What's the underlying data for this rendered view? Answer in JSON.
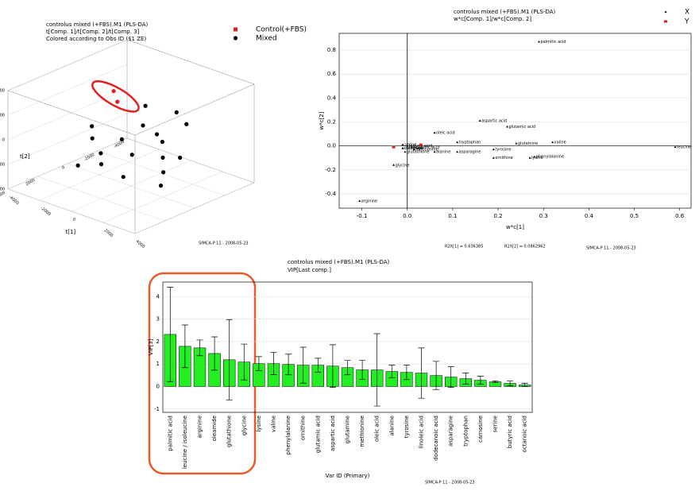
{
  "chart_data": [
    {
      "type": "scatter3d",
      "title": "controlus mixed (+FBS).M1 (PLS-DA)",
      "subtitle": "t[Comp. 1]/t[Comp. 2]/t[Comp. 3]",
      "note": "Colored according to Obs ID ($1 ZE)",
      "xlabel": "t[1]",
      "ylabel": "t[2]",
      "zlabel": "t[3]",
      "xlim": [
        -4000,
        4000
      ],
      "ylim": [
        -4000,
        4000
      ],
      "zlim": [
        -4000,
        4000
      ],
      "xticks": [
        -4000,
        -2000,
        0,
        2000,
        4000
      ],
      "yticks": [
        -4000,
        -2000,
        0,
        2000,
        4000
      ],
      "zticks": [
        -4000,
        -2000,
        0,
        2000,
        4000
      ],
      "series": [
        {
          "name": "Control(+FBS)",
          "color": "#e02020",
          "x": [
            -2500,
            -1800
          ],
          "y": [
            -1500,
            -1000
          ],
          "z": [
            1800,
            1500
          ]
        },
        {
          "name": "Mixed",
          "color": "#000000",
          "x": [
            -500,
            0,
            500,
            1500,
            2000,
            2500,
            1000,
            -500,
            0,
            -1500,
            -2000,
            1800,
            2800,
            3000,
            -1000,
            800,
            -300,
            1200
          ],
          "y": [
            -1500,
            -800,
            -1200,
            -500,
            0,
            500,
            1000,
            1500,
            2000,
            1000,
            500,
            -1800,
            -300,
            1200,
            2500,
            -2200,
            300,
            1800
          ],
          "z": [
            1500,
            500,
            -200,
            0,
            -800,
            -1500,
            -500,
            -800,
            -1200,
            -300,
            200,
            900,
            -600,
            -2000,
            -1500,
            1200,
            -200,
            -1800
          ]
        }
      ],
      "footer": "SIMCA-P 11 - 2008-05-23"
    },
    {
      "type": "scatter",
      "title": "controlus mixed (+FBS).M1 (PLS-DA)",
      "subtitle": "w*c[Comp. 1]/w*c[Comp. 2]",
      "xlabel": "w*c[1]",
      "ylabel": "w*c[2]",
      "xlim": [
        -0.15,
        0.625
      ],
      "ylim": [
        -0.52,
        0.94
      ],
      "xticks": [
        -0.1,
        {
          "value": 0,
          "label": "0.0"
        },
        0.1,
        0.2,
        0.3,
        0.4,
        0.5,
        0.6
      ],
      "yticks": [
        -0.4,
        -0.2,
        {
          "value": 0,
          "label": "0.0"
        },
        0.2,
        0.4,
        0.6,
        0.8
      ],
      "grid": true,
      "series": [
        {
          "name": "X",
          "color": "#000000",
          "x": [
            0.29,
            0.16,
            0.22,
            0.06,
            0.11,
            0.24,
            0.32,
            0.59,
            0.19,
            0.19,
            0.28,
            0.27,
            0.06,
            0.11,
            -0.03,
            -0.105,
            -0.01,
            -0.01,
            -0.005,
            0.0,
            0.01,
            0.015,
            -0.01
          ],
          "y": [
            0.87,
            0.21,
            0.16,
            0.11,
            0.03,
            0.02,
            0.03,
            -0.01,
            -0.03,
            -0.1,
            -0.09,
            -0.1,
            -0.05,
            -0.05,
            -0.16,
            -0.46,
            0.01,
            -0.02,
            -0.05,
            0.0,
            -0.01,
            -0.03,
            -0.02
          ],
          "labels": [
            "palmitic acid",
            "aspartic acid",
            "glutamic acid",
            "oleic acid",
            "tryptophan",
            "glutamine",
            "valine",
            "leucine",
            "tyrosine",
            "ornithine",
            "phenylalanine",
            "lysine",
            "alanine",
            "asparagine",
            "glycine",
            "arginine",
            "serine",
            "carnosine",
            "glutathione",
            "butyric acid",
            "octanoic acid",
            "methionine",
            "oleamide"
          ]
        },
        {
          "name": "Y",
          "color": "#e02020",
          "x": [
            0.03,
            -0.03
          ],
          "y": [
            0.01,
            -0.01
          ]
        }
      ],
      "r2x": [
        "R2X[1] = 0.636385",
        "R2X[2] = 0.0862962"
      ],
      "footer": "SIMCA-P 11 - 2008-05-23"
    },
    {
      "type": "bar",
      "title": "controlus mixed (+FBS).M1 (PLS-DA)",
      "subtitle": "VIP[Last comp.]",
      "xlabel": "Var ID (Primary)",
      "ylabel": "VIP[3]",
      "color": "#22ee22",
      "categories": [
        "palmitic acid",
        "leucine / isoleucine",
        "arginine",
        "oleamide",
        "glutathione",
        "glycine",
        "lysine",
        "valine",
        "phenylalanine",
        "ornithine",
        "glutamic acid",
        "aspartic acid",
        "glutamine",
        "methionine",
        "oleic acid",
        "alanine",
        "tyrosine",
        "linoleic acid",
        "dodecanoic acid",
        "asparagine",
        "tryptophan",
        "carnosine",
        "serine",
        "butyric acid",
        "octanoic acid"
      ],
      "values": [
        2.32,
        1.79,
        1.72,
        1.47,
        1.19,
        1.09,
        1.02,
        1.02,
        0.98,
        0.95,
        0.95,
        0.91,
        0.84,
        0.74,
        0.74,
        0.67,
        0.63,
        0.6,
        0.49,
        0.42,
        0.35,
        0.28,
        0.21,
        0.14,
        0.07
      ],
      "errors": [
        2.1,
        0.95,
        0.35,
        0.74,
        1.79,
        0.8,
        0.31,
        0.49,
        0.46,
        0.8,
        0.31,
        0.95,
        0.32,
        0.42,
        1.61,
        0.28,
        0.32,
        1.12,
        0.63,
        0.46,
        0.25,
        0.18,
        0.04,
        0.11,
        0.07
      ],
      "ylim": [
        -1.15,
        4.65
      ],
      "yticks": [
        -1,
        0,
        1,
        2,
        3,
        4
      ],
      "grid": true,
      "footer": "SIMCA-P 11 - 2008-05-23"
    }
  ]
}
